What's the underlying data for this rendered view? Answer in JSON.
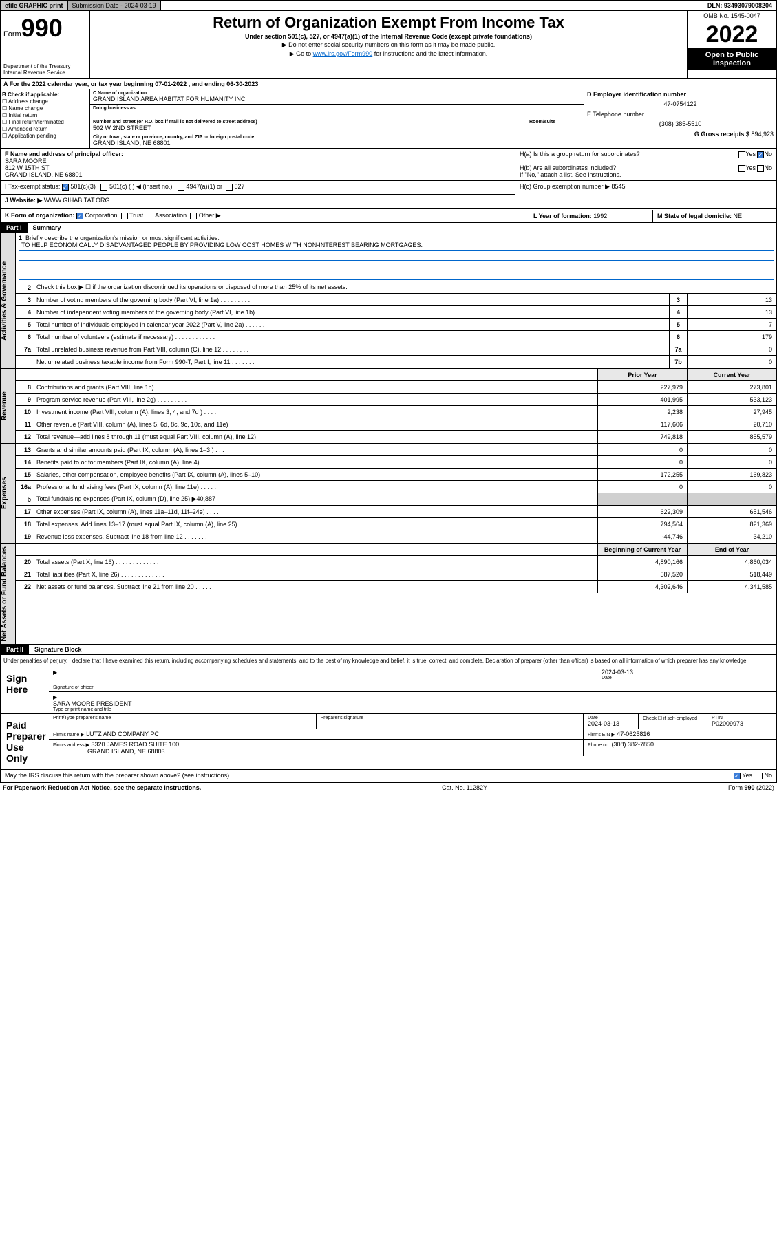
{
  "topbar": {
    "efile": "efile GRAPHIC print",
    "submission": "Submission Date - 2024-03-19",
    "dln": "DLN: 93493079008204"
  },
  "header": {
    "form_prefix": "Form",
    "form_num": "990",
    "title": "Return of Organization Exempt From Income Tax",
    "subtitle1": "Under section 501(c), 527, or 4947(a)(1) of the Internal Revenue Code (except private foundations)",
    "subtitle2": "▶ Do not enter social security numbers on this form as it may be made public.",
    "subtitle3_pre": "▶ Go to ",
    "subtitle3_link": "www.irs.gov/Form990",
    "subtitle3_post": " for instructions and the latest information.",
    "omb": "OMB No. 1545-0047",
    "year": "2022",
    "inspect": "Open to Public Inspection",
    "dept": "Department of the Treasury\nInternal Revenue Service"
  },
  "sectionA": "A  For the 2022 calendar year, or tax year beginning 07-01-2022   , and ending 06-30-2023",
  "colB": {
    "hdr": "B Check if applicable:",
    "items": [
      "☐ Address change",
      "☐ Name change",
      "☐ Initial return",
      "☐ Final return/terminated",
      "☐ Amended return",
      "☐ Application pending"
    ]
  },
  "colC": {
    "name_lbl": "C Name of organization",
    "name": "GRAND ISLAND AREA HABITAT FOR HUMANITY INC",
    "dba_lbl": "Doing business as",
    "addr_lbl": "Number and street (or P.O. box if mail is not delivered to street address)",
    "room_lbl": "Room/suite",
    "addr": "502 W 2ND STREET",
    "city_lbl": "City or town, state or province, country, and ZIP or foreign postal code",
    "city": "GRAND ISLAND, NE  68801"
  },
  "colDE": {
    "d_lbl": "D Employer identification number",
    "ein": "47-0754122",
    "e_lbl": "E Telephone number",
    "phone": "(308) 385-5510",
    "g_lbl": "G Gross receipts $",
    "gross": "894,923"
  },
  "rowF": {
    "lbl": "F  Name and address of principal officer:",
    "name": "SARA MOORE",
    "addr1": "812 W 15TH ST",
    "addr2": "GRAND ISLAND, NE  68801"
  },
  "rowH": {
    "ha": "H(a)  Is this a group return for subordinates?",
    "hb": "H(b)  Are all subordinates included?",
    "hb_note": "If \"No,\" attach a list. See instructions.",
    "hc": "H(c)  Group exemption number ▶",
    "hc_val": "8545",
    "yes": "Yes",
    "no": "No"
  },
  "rowI": {
    "lbl": "I     Tax-exempt status:",
    "opt1": "501(c)(3)",
    "opt2": "501(c) (  ) ◀ (insert no.)",
    "opt3": "4947(a)(1) or",
    "opt4": "527"
  },
  "rowJ": {
    "lbl": "J    Website: ▶",
    "val": "WWW.GIHABITAT.ORG"
  },
  "rowK": {
    "lbl": "K Form of organization:",
    "opts": [
      "Corporation",
      "Trust",
      "Association",
      "Other ▶"
    ]
  },
  "rowL": {
    "lbl": "L Year of formation:",
    "val": "1992"
  },
  "rowM": {
    "lbl": "M State of legal domicile:",
    "val": "NE"
  },
  "part1": {
    "hdr": "Part I",
    "title": "Summary"
  },
  "mission": {
    "lbl": "Briefly describe the organization's mission or most significant activities:",
    "txt": "TO HELP ECONOMICALLY DISADVANTAGED PEOPLE BY PROVIDING LOW COST HOMES WITH NON-INTEREST BEARING MORTGAGES."
  },
  "gov_rows": [
    {
      "n": "2",
      "txt": "Check this box ▶ ☐  if the organization discontinued its operations or disposed of more than 25% of its net assets.",
      "box": "",
      "val": ""
    },
    {
      "n": "3",
      "txt": "Number of voting members of the governing body (Part VI, line 1a)   .    .    .    .    .    .    .    .    .",
      "box": "3",
      "val": "13"
    },
    {
      "n": "4",
      "txt": "Number of independent voting members of the governing body (Part VI, line 1b)  .    .    .    .    .",
      "box": "4",
      "val": "13"
    },
    {
      "n": "5",
      "txt": "Total number of individuals employed in calendar year 2022 (Part V, line 2a)  .    .    .    .    .    .",
      "box": "5",
      "val": "7"
    },
    {
      "n": "6",
      "txt": "Total number of volunteers (estimate if necessary)  .    .    .    .    .    .    .    .    .    .    .    .",
      "box": "6",
      "val": "179"
    },
    {
      "n": "7a",
      "txt": "Total unrelated business revenue from Part VIII, column (C), line 12  .    .    .    .    .    .    .    .",
      "box": "7a",
      "val": "0"
    },
    {
      "n": "",
      "txt": "Net unrelated business taxable income from Form 990-T, Part I, line 11  .    .    .    .    .    .    .",
      "box": "7b",
      "val": "0"
    }
  ],
  "rev_hdr": {
    "prior": "Prior Year",
    "curr": "Current Year"
  },
  "rev_rows": [
    {
      "n": "8",
      "txt": "Contributions and grants (Part VIII, line 1h)  .    .    .    .    .    .    .    .    .",
      "p": "227,979",
      "c": "273,801"
    },
    {
      "n": "9",
      "txt": "Program service revenue (Part VIII, line 2g)  .    .    .    .    .    .    .    .    .",
      "p": "401,995",
      "c": "533,123"
    },
    {
      "n": "10",
      "txt": "Investment income (Part VIII, column (A), lines 3, 4, and 7d )  .    .    .    .",
      "p": "2,238",
      "c": "27,945"
    },
    {
      "n": "11",
      "txt": "Other revenue (Part VIII, column (A), lines 5, 6d, 8c, 9c, 10c, and 11e)",
      "p": "117,606",
      "c": "20,710"
    },
    {
      "n": "12",
      "txt": "Total revenue—add lines 8 through 11 (must equal Part VIII, column (A), line 12)",
      "p": "749,818",
      "c": "855,579"
    }
  ],
  "exp_rows": [
    {
      "n": "13",
      "txt": "Grants and similar amounts paid (Part IX, column (A), lines 1–3 )  .    .    .",
      "p": "0",
      "c": "0"
    },
    {
      "n": "14",
      "txt": "Benefits paid to or for members (Part IX, column (A), line 4)  .    .    .    .",
      "p": "0",
      "c": "0"
    },
    {
      "n": "15",
      "txt": "Salaries, other compensation, employee benefits (Part IX, column (A), lines 5–10)",
      "p": "172,255",
      "c": "169,823"
    },
    {
      "n": "16a",
      "txt": "Professional fundraising fees (Part IX, column (A), line 11e)  .    .    .    .    .",
      "p": "0",
      "c": "0"
    },
    {
      "n": "b",
      "txt": "Total fundraising expenses (Part IX, column (D), line 25) ▶40,887",
      "p": "",
      "c": "",
      "gray": true
    },
    {
      "n": "17",
      "txt": "Other expenses (Part IX, column (A), lines 11a–11d, 11f–24e)  .    .    .    .",
      "p": "622,309",
      "c": "651,546"
    },
    {
      "n": "18",
      "txt": "Total expenses. Add lines 13–17 (must equal Part IX, column (A), line 25)",
      "p": "794,564",
      "c": "821,369"
    },
    {
      "n": "19",
      "txt": "Revenue less expenses. Subtract line 18 from line 12  .    .    .    .    .    .    .",
      "p": "-44,746",
      "c": "34,210"
    }
  ],
  "na_hdr": {
    "prior": "Beginning of Current Year",
    "curr": "End of Year"
  },
  "na_rows": [
    {
      "n": "20",
      "txt": "Total assets (Part X, line 16)  .    .    .    .    .    .    .    .    .    .    .    .    .",
      "p": "4,890,166",
      "c": "4,860,034"
    },
    {
      "n": "21",
      "txt": "Total liabilities (Part X, line 26)  .    .    .    .    .    .    .    .    .    .    .    .    .",
      "p": "587,520",
      "c": "518,449"
    },
    {
      "n": "22",
      "txt": "Net assets or fund balances. Subtract line 21 from line 20  .    .    .    .    .",
      "p": "4,302,646",
      "c": "4,341,585"
    }
  ],
  "part2": {
    "hdr": "Part II",
    "title": "Signature Block"
  },
  "sig_disclaimer": "Under penalties of perjury, I declare that I have examined this return, including accompanying schedules and statements, and to the best of my knowledge and belief, it is true, correct, and complete. Declaration of preparer (other than officer) is based on all information of which preparer has any knowledge.",
  "sign_here": {
    "lbl": "Sign Here",
    "sig_lbl": "Signature of officer",
    "date": "2024-03-13",
    "date_lbl": "Date",
    "name": "SARA MOORE  PRESIDENT",
    "name_lbl": "Type or print name and title"
  },
  "preparer": {
    "lbl": "Paid Preparer Use Only",
    "name_lbl": "Print/Type preparer's name",
    "sig_lbl": "Preparer's signature",
    "date_lbl": "Date",
    "date": "2024-03-13",
    "check_lbl": "Check ☐ if self-employed",
    "ptin_lbl": "PTIN",
    "ptin": "P02009973",
    "firm_lbl": "Firm's name    ▶",
    "firm": "LUTZ AND COMPANY PC",
    "ein_lbl": "Firm's EIN ▶",
    "ein": "47-0625816",
    "addr_lbl": "Firm's address ▶",
    "addr1": "3320 JAMES ROAD SUITE 100",
    "addr2": "GRAND ISLAND, NE  68803",
    "phone_lbl": "Phone no.",
    "phone": "(308) 382-7850"
  },
  "discuss": {
    "txt": "May the IRS discuss this return with the preparer shown above? (see instructions)   .    .    .    .    .    .    .    .    .    .",
    "yes": "Yes",
    "no": "No"
  },
  "footer": {
    "left": "For Paperwork Reduction Act Notice, see the separate instructions.",
    "mid": "Cat. No. 11282Y",
    "right": "Form 990 (2022)"
  },
  "vtabs": {
    "gov": "Activities & Governance",
    "rev": "Revenue",
    "exp": "Expenses",
    "na": "Net Assets or Fund Balances"
  }
}
